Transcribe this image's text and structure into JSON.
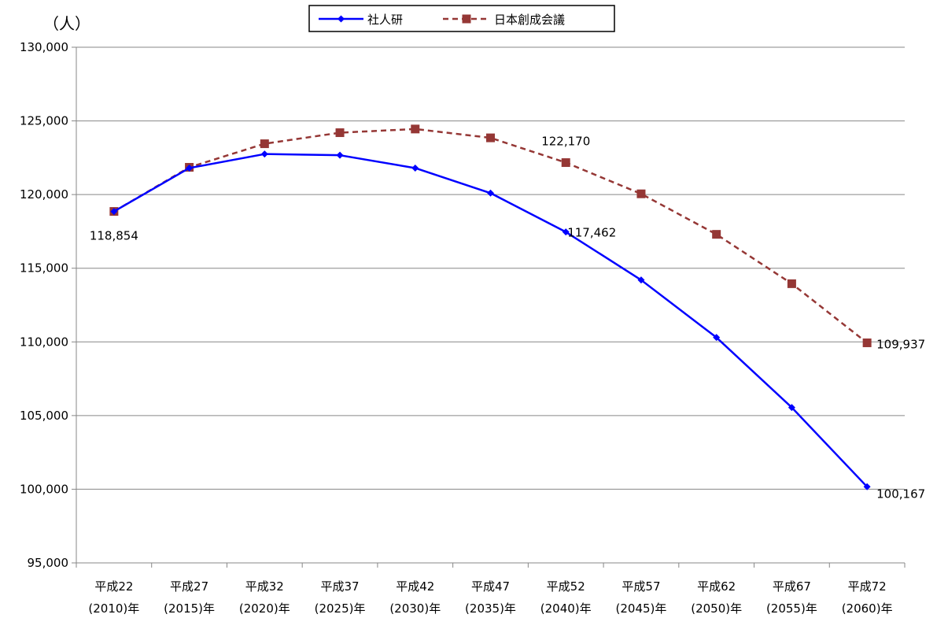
{
  "chart_data": {
    "type": "line",
    "unit": "（人）",
    "categories": [
      [
        "平成22",
        "(2010)年"
      ],
      [
        "平成27",
        "(2015)年"
      ],
      [
        "平成32",
        "(2020)年"
      ],
      [
        "平成37",
        "(2025)年"
      ],
      [
        "平成42",
        "(2030)年"
      ],
      [
        "平成47",
        "(2035)年"
      ],
      [
        "平成52",
        "(2040)年"
      ],
      [
        "平成57",
        "(2045)年"
      ],
      [
        "平成62",
        "(2050)年"
      ],
      [
        "平成67",
        "(2055)年"
      ],
      [
        "平成72",
        "(2060)年"
      ]
    ],
    "ylim": [
      95000,
      130000
    ],
    "yticks": [
      95000,
      100000,
      105000,
      110000,
      115000,
      120000,
      125000,
      130000
    ],
    "ytick_labels": [
      "95,000",
      "100,000",
      "105,000",
      "110,000",
      "115,000",
      "120,000",
      "125,000",
      "130,000"
    ],
    "grid": true,
    "legend_position": "top-center",
    "series": [
      {
        "name": "社人研",
        "color": "#0000ff",
        "line_style": "solid",
        "marker": "diamond",
        "values": [
          118854,
          121800,
          122750,
          122670,
          121800,
          120100,
          117462,
          114200,
          110300,
          105550,
          100167
        ]
      },
      {
        "name": "日本創成会議",
        "color": "#953735",
        "line_style": "dashed",
        "marker": "square",
        "values": [
          118854,
          121850,
          123450,
          124200,
          124450,
          123850,
          122170,
          120050,
          117300,
          113950,
          109937
        ]
      }
    ],
    "data_labels": [
      {
        "series": 0,
        "index": 0,
        "text": "118,854"
      },
      {
        "series": 0,
        "index": 6,
        "text": "117,462"
      },
      {
        "series": 1,
        "index": 6,
        "text": "122,170"
      },
      {
        "series": 1,
        "index": 10,
        "text": "109,937"
      },
      {
        "series": 0,
        "index": 10,
        "text": "100,167"
      }
    ]
  }
}
